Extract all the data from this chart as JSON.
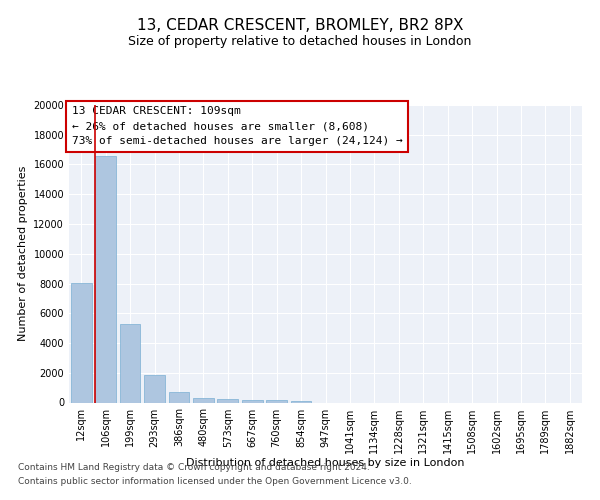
{
  "title": "13, CEDAR CRESCENT, BROMLEY, BR2 8PX",
  "subtitle": "Size of property relative to detached houses in London",
  "xlabel": "Distribution of detached houses by size in London",
  "ylabel": "Number of detached properties",
  "categories": [
    "12sqm",
    "106sqm",
    "199sqm",
    "293sqm",
    "386sqm",
    "480sqm",
    "573sqm",
    "667sqm",
    "760sqm",
    "854sqm",
    "947sqm",
    "1041sqm",
    "1134sqm",
    "1228sqm",
    "1321sqm",
    "1415sqm",
    "1508sqm",
    "1602sqm",
    "1695sqm",
    "1789sqm",
    "1882sqm"
  ],
  "values": [
    8050,
    16600,
    5300,
    1850,
    700,
    310,
    210,
    175,
    150,
    110,
    0,
    0,
    0,
    0,
    0,
    0,
    0,
    0,
    0,
    0,
    0
  ],
  "bar_color": "#aec6e0",
  "bar_edge_color": "#7aafd4",
  "vline_color": "#cc0000",
  "annotation_text": "13 CEDAR CRESCENT: 109sqm\n← 26% of detached houses are smaller (8,608)\n73% of semi-detached houses are larger (24,124) →",
  "annotation_box_color": "#cc0000",
  "ylim": [
    0,
    20000
  ],
  "yticks": [
    0,
    2000,
    4000,
    6000,
    8000,
    10000,
    12000,
    14000,
    16000,
    18000,
    20000
  ],
  "background_color": "#edf1f8",
  "grid_color": "#ffffff",
  "footer_line1": "Contains HM Land Registry data © Crown copyright and database right 2024.",
  "footer_line2": "Contains public sector information licensed under the Open Government Licence v3.0.",
  "title_fontsize": 11,
  "subtitle_fontsize": 9,
  "axis_label_fontsize": 8,
  "tick_fontsize": 7,
  "annotation_fontsize": 8,
  "footer_fontsize": 6.5
}
